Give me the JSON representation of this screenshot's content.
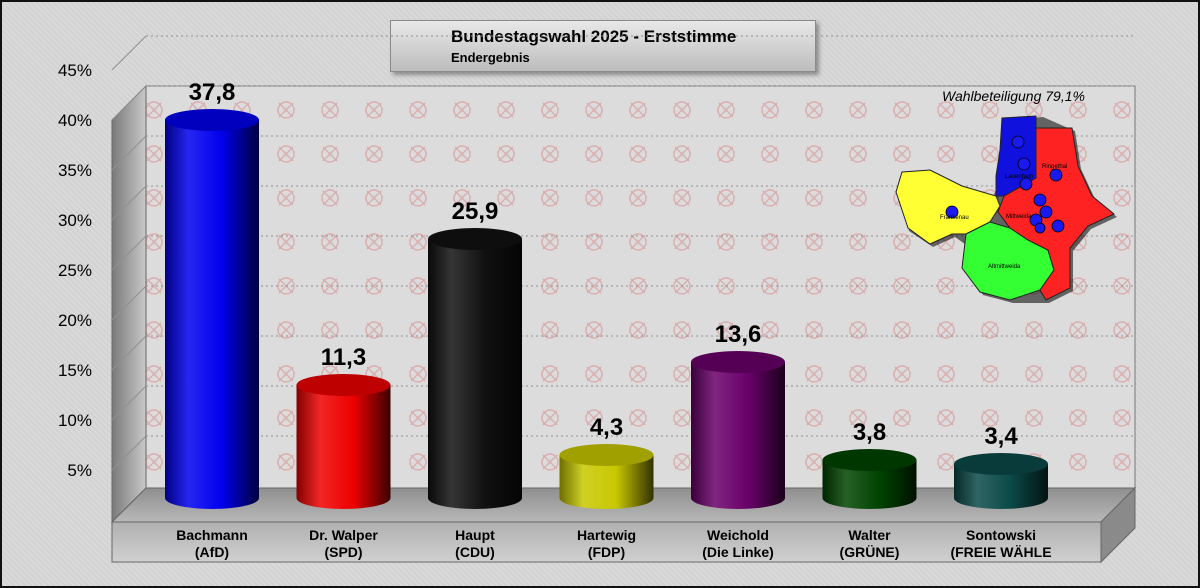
{
  "header": {
    "title": "Bundestagswahl 2025 - Erststimme",
    "subtitle": "Endergebnis"
  },
  "turnout_label": "Wahlbeteiligung 79,1%",
  "map": {
    "labels": [
      "Frankenau",
      "Altmittweida",
      "Lauenhain",
      "Ringethal",
      "Mittweida"
    ],
    "region_colors": [
      "#ffff33",
      "#33ff33",
      "#ff2222",
      "#1111dd"
    ]
  },
  "chart_data": {
    "type": "bar",
    "categories": [
      "Bachmann\n(AfD)",
      "Dr. Walper\n(SPD)",
      "Haupt\n(CDU)",
      "Hartewig\n(FDP)",
      "Weichold\n(Die Linke)",
      "Walter\n(GRÜNE)",
      "Sontowski\n(FREIE WÄHLE"
    ],
    "values": [
      37.8,
      11.3,
      25.9,
      4.3,
      13.6,
      3.8,
      3.4
    ],
    "value_labels": [
      "37,8",
      "11,3",
      "25,9",
      "4,3",
      "13,6",
      "3,8",
      "3,4"
    ],
    "colors": [
      "#0000ee",
      "#ee0000",
      "#111111",
      "#c8c800",
      "#6a006a",
      "#004400",
      "#0a4a48"
    ],
    "yticks": [
      "5%",
      "10%",
      "15%",
      "20%",
      "25%",
      "30%",
      "35%",
      "40%",
      "45%"
    ],
    "ylim": [
      0,
      45
    ],
    "grid": true,
    "legend": "none"
  }
}
